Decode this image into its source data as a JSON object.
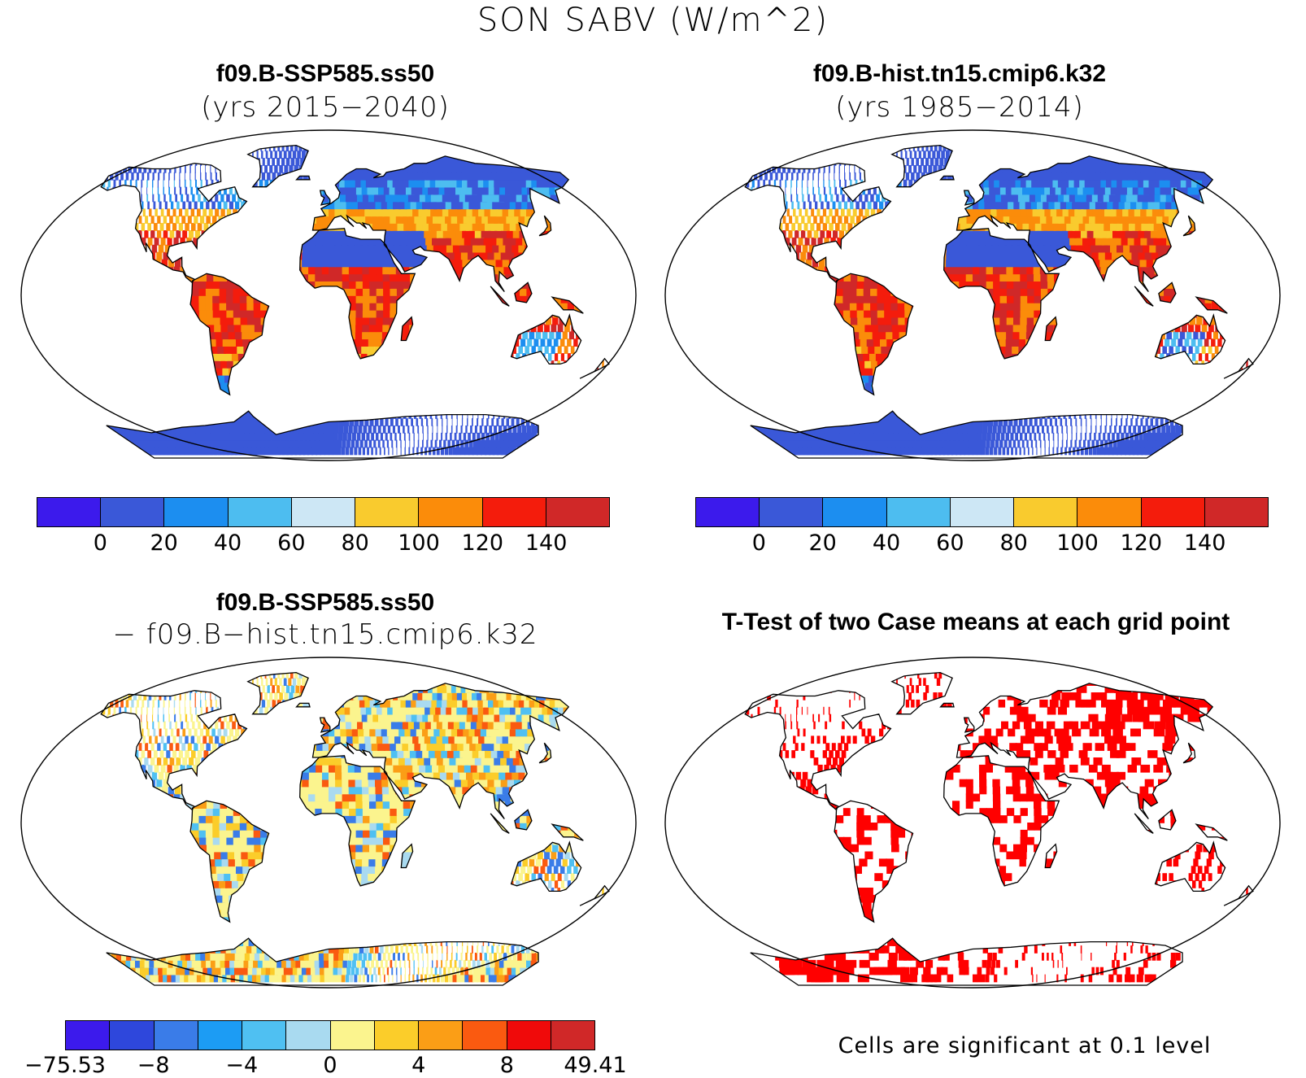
{
  "title": "SON SABV (W/m^2)",
  "panels": [
    {
      "id": "p1",
      "title": "f09.B-SSP585.ss50",
      "subtitle": "(yrs 2015−2040)",
      "colorbar": {
        "colors": [
          "#3c1aec",
          "#3a58d8",
          "#1c8ef0",
          "#4dbdf0",
          "#cde7f5",
          "#f9cb2e",
          "#fb8c0a",
          "#f41c0c",
          "#d02828"
        ],
        "ticks": [
          "0",
          "20",
          "40",
          "60",
          "80",
          "100",
          "120",
          "140"
        ]
      }
    },
    {
      "id": "p2",
      "title": "f09.B-hist.tn15.cmip6.k32",
      "subtitle": "(yrs 1985−2014)",
      "colorbar": {
        "colors": [
          "#3c1aec",
          "#3a58d8",
          "#1c8ef0",
          "#4dbdf0",
          "#cde7f5",
          "#f9cb2e",
          "#fb8c0a",
          "#f41c0c",
          "#d02828"
        ],
        "ticks": [
          "0",
          "20",
          "40",
          "60",
          "80",
          "100",
          "120",
          "140"
        ]
      }
    },
    {
      "id": "p3",
      "title": "f09.B-SSP585.ss50",
      "subtitle": "− f09.B−hist.tn15.cmip6.k32",
      "colorbar": {
        "colors": [
          "#3c1aec",
          "#2e47dc",
          "#3a7ce8",
          "#1c9cf4",
          "#4fc0f2",
          "#a9daf0",
          "#fbf48e",
          "#fbcd2a",
          "#fb9e16",
          "#fa5a10",
          "#f00a0a",
          "#d02828"
        ],
        "ticks": [
          "−75.53",
          "−8",
          "−4",
          "0",
          "4",
          "8",
          "49.41"
        ]
      }
    },
    {
      "id": "p4",
      "title": "T-Test of two Case means at each grid point",
      "note": "Cells are significant at 0.1 level",
      "sig_color": "#ff0000"
    }
  ]
}
